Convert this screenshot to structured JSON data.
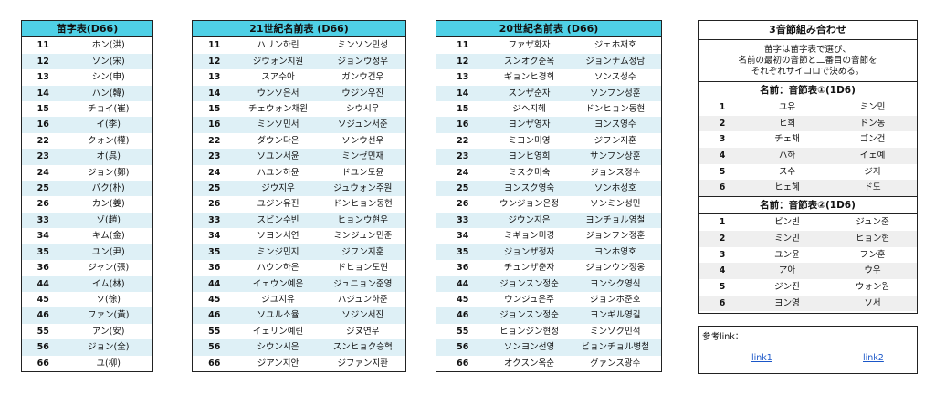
{
  "surname_table": {
    "title": "苗字表(D66)",
    "rows": [
      [
        "11",
        "ホン(洪)"
      ],
      [
        "12",
        "ソン(宋)"
      ],
      [
        "13",
        "シン(申)"
      ],
      [
        "14",
        "ハン(韓)"
      ],
      [
        "15",
        "チョイ(崔)"
      ],
      [
        "16",
        "イ(李)"
      ],
      [
        "22",
        "クォン(權)"
      ],
      [
        "23",
        "オ(呉)"
      ],
      [
        "24",
        "ジョン(鄭)"
      ],
      [
        "25",
        "パク(朴)"
      ],
      [
        "26",
        "カン(姜)"
      ],
      [
        "33",
        "ゾ(趙)"
      ],
      [
        "34",
        "キム(金)"
      ],
      [
        "35",
        "ユン(尹)"
      ],
      [
        "36",
        "ジャン(張)"
      ],
      [
        "44",
        "イム(林)"
      ],
      [
        "45",
        "ソ(徐)"
      ],
      [
        "46",
        "ファン(黃)"
      ],
      [
        "55",
        "アン(安)"
      ],
      [
        "56",
        "ジョン(全)"
      ],
      [
        "66",
        "ユ(柳)"
      ]
    ]
  },
  "names21_table": {
    "title": "21世紀名前表 (D66)",
    "rows": [
      [
        "11",
        "ハリン하린",
        "ミンソン민성"
      ],
      [
        "12",
        "ジウォン지원",
        "ジョンウ정우"
      ],
      [
        "13",
        "スア수아",
        "ガンウ건우"
      ],
      [
        "14",
        "ウンソ은서",
        "ウジン우진"
      ],
      [
        "15",
        "チェウォン채원",
        "シウ시우"
      ],
      [
        "16",
        "ミンソ민서",
        "ソジュン서준"
      ],
      [
        "22",
        "ダウン다은",
        "ソンウ선우"
      ],
      [
        "23",
        "ソユン서윤",
        "ミンゼ민재"
      ],
      [
        "24",
        "ハユン하윤",
        "ドユン도윤"
      ],
      [
        "25",
        "ジウ지우",
        "ジュウォン주원"
      ],
      [
        "26",
        "ユジン유진",
        "ドンヒョン동현"
      ],
      [
        "33",
        "スビン수빈",
        "ヒョンウ현우"
      ],
      [
        "34",
        "ソヨン서연",
        "ミンジュン민준"
      ],
      [
        "35",
        "ミンジ민지",
        "ジフン지훈"
      ],
      [
        "36",
        "ハウン하은",
        "ドヒョン도현"
      ],
      [
        "44",
        "イェウン예은",
        "ジュニョン준영"
      ],
      [
        "45",
        "ジユ지유",
        "ハジュン하준"
      ],
      [
        "46",
        "ソユル소율",
        "ソジン서진"
      ],
      [
        "55",
        "イェリン예린",
        "ジヌ연우"
      ],
      [
        "56",
        "シウン시은",
        "スンヒョク승혁"
      ],
      [
        "66",
        "ジアン지안",
        "ジファン지환"
      ]
    ]
  },
  "names20_table": {
    "title": "20世紀名前表 (D66)",
    "rows": [
      [
        "11",
        "ファザ화자",
        "ジェホ재호"
      ],
      [
        "12",
        "スンオク순옥",
        "ジョンナム정남"
      ],
      [
        "13",
        "ギョンヒ경희",
        "ソンス성수"
      ],
      [
        "14",
        "スンザ순자",
        "ソンフン성훈"
      ],
      [
        "15",
        "ジヘ지혜",
        "ドンヒョン동현"
      ],
      [
        "16",
        "ヨンザ영자",
        "ヨンス영수"
      ],
      [
        "22",
        "ミヨン미영",
        "ジフン지훈"
      ],
      [
        "23",
        "ヨンヒ영희",
        "サンフン상훈"
      ],
      [
        "24",
        "ミスク미숙",
        "ジョンス정수"
      ],
      [
        "25",
        "ヨンスク영숙",
        "ソンホ성호"
      ],
      [
        "26",
        "ウンジョン은정",
        "ソンミン성민"
      ],
      [
        "33",
        "ジウン지은",
        "ヨンチョル영철"
      ],
      [
        "34",
        "ミギョン미경",
        "ジョンフン정훈"
      ],
      [
        "35",
        "ジョンザ정자",
        "ヨンホ영호"
      ],
      [
        "36",
        "チュンザ춘자",
        "ジョンウン정웅"
      ],
      [
        "44",
        "ジョンスン정순",
        "ヨンシク영식"
      ],
      [
        "45",
        "ウンジュ은주",
        "ジョンホ준호"
      ],
      [
        "46",
        "ジョンスン정순",
        "ヨンギル영길"
      ],
      [
        "55",
        "ヒョンジン현정",
        "ミンソク민석"
      ],
      [
        "56",
        "ソンヨン선영",
        "ビョンチョル병철"
      ],
      [
        "66",
        "オクスン옥순",
        "グァンス광수"
      ]
    ]
  },
  "syllable_info": {
    "title": "3音節組み合わせ",
    "description": [
      "苗字は苗字表で選び、",
      "名前の最初の音節と二番目の音節を",
      "それぞれサイコロで決める。"
    ],
    "table1_title": "名前：音節表①(1D6)",
    "table1_rows": [
      [
        "1",
        "ユ유",
        "ミン민"
      ],
      [
        "2",
        "ヒ희",
        "ドン동"
      ],
      [
        "3",
        "チェ채",
        "ゴン건"
      ],
      [
        "4",
        "ハ하",
        "イェ예"
      ],
      [
        "5",
        "ス수",
        "ジ지"
      ],
      [
        "6",
        "ヒェ혜",
        "ド도"
      ]
    ],
    "table2_title": "名前：音節表②(1D6)",
    "table2_rows": [
      [
        "1",
        "ビン빈",
        "ジュン준"
      ],
      [
        "2",
        "ミン민",
        "ヒョン현"
      ],
      [
        "3",
        "ユン윤",
        "フン훈"
      ],
      [
        "4",
        "ア아",
        "ウ우"
      ],
      [
        "5",
        "ジン진",
        "ウォン원"
      ],
      [
        "6",
        "ヨン영",
        "ソ서"
      ]
    ]
  },
  "reference": {
    "label": "参考link：",
    "links": [
      "link1",
      "link2"
    ]
  }
}
